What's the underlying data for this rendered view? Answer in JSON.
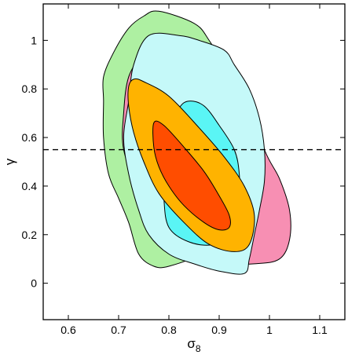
{
  "chart_data": {
    "type": "contour",
    "xlabel": "σ",
    "xlabel_sub": "8",
    "ylabel": "γ",
    "xlim": [
      0.55,
      1.15
    ],
    "ylim": [
      -0.15,
      1.15
    ],
    "xticks": [
      {
        "v": 0.6,
        "t": "0.6"
      },
      {
        "v": 0.7,
        "t": "0.7"
      },
      {
        "v": 0.8,
        "t": "0.8"
      },
      {
        "v": 0.9,
        "t": "0.9"
      },
      {
        "v": 1.0,
        "t": "1"
      },
      {
        "v": 1.1,
        "t": "1.1"
      }
    ],
    "yticks": [
      {
        "v": 0.0,
        "t": "0"
      },
      {
        "v": 0.2,
        "t": "0.2"
      },
      {
        "v": 0.4,
        "t": "0.4"
      },
      {
        "v": 0.6,
        "t": "0.6"
      },
      {
        "v": 0.8,
        "t": "0.8"
      },
      {
        "v": 1.0,
        "t": "1"
      }
    ],
    "reference_line": {
      "y": 0.55,
      "style": "dashed"
    },
    "grid": false,
    "regions": [
      {
        "id": "green-outer",
        "color": "#aef0a2",
        "points": [
          [
            0.75,
            1.1
          ],
          [
            0.78,
            1.12
          ],
          [
            0.85,
            1.07
          ],
          [
            0.88,
            1.0
          ],
          [
            0.92,
            0.85
          ],
          [
            0.95,
            0.65
          ],
          [
            0.96,
            0.5
          ],
          [
            0.94,
            0.35
          ],
          [
            0.9,
            0.22
          ],
          [
            0.86,
            0.12
          ],
          [
            0.8,
            0.07
          ],
          [
            0.77,
            0.07
          ],
          [
            0.74,
            0.12
          ],
          [
            0.72,
            0.25
          ],
          [
            0.7,
            0.35
          ],
          [
            0.68,
            0.45
          ],
          [
            0.67,
            0.6
          ],
          [
            0.67,
            0.75
          ],
          [
            0.67,
            0.85
          ],
          [
            0.69,
            0.95
          ],
          [
            0.72,
            1.05
          ]
        ]
      },
      {
        "id": "pink-outer",
        "color": "#f78fb3",
        "points": [
          [
            0.78,
            1.01
          ],
          [
            0.83,
            1.0
          ],
          [
            0.9,
            0.95
          ],
          [
            0.95,
            0.8
          ],
          [
            0.99,
            0.55
          ],
          [
            1.02,
            0.43
          ],
          [
            1.04,
            0.3
          ],
          [
            1.04,
            0.18
          ],
          [
            1.02,
            0.1
          ],
          [
            0.97,
            0.08
          ],
          [
            0.88,
            0.08
          ],
          [
            0.82,
            0.13
          ],
          [
            0.77,
            0.25
          ],
          [
            0.74,
            0.38
          ],
          [
            0.71,
            0.55
          ],
          [
            0.71,
            0.7
          ],
          [
            0.72,
            0.85
          ],
          [
            0.75,
            0.95
          ]
        ]
      },
      {
        "id": "cyan-outer",
        "color": "#c5f9f9",
        "points": [
          [
            0.76,
            1.02
          ],
          [
            0.82,
            1.02
          ],
          [
            0.86,
            1.0
          ],
          [
            0.91,
            0.96
          ],
          [
            0.93,
            0.9
          ],
          [
            0.96,
            0.8
          ],
          [
            0.98,
            0.68
          ],
          [
            0.99,
            0.55
          ],
          [
            0.99,
            0.42
          ],
          [
            0.98,
            0.3
          ],
          [
            0.97,
            0.2
          ],
          [
            0.96,
            0.1
          ],
          [
            0.95,
            0.04
          ],
          [
            0.9,
            0.05
          ],
          [
            0.85,
            0.08
          ],
          [
            0.8,
            0.12
          ],
          [
            0.76,
            0.2
          ],
          [
            0.74,
            0.3
          ],
          [
            0.72,
            0.45
          ],
          [
            0.71,
            0.6
          ],
          [
            0.72,
            0.75
          ],
          [
            0.73,
            0.9
          ]
        ]
      },
      {
        "id": "cyan-inner",
        "color": "#5af5f5",
        "points": [
          [
            0.84,
            0.75
          ],
          [
            0.87,
            0.73
          ],
          [
            0.9,
            0.65
          ],
          [
            0.93,
            0.55
          ],
          [
            0.94,
            0.45
          ],
          [
            0.94,
            0.32
          ],
          [
            0.93,
            0.22
          ],
          [
            0.89,
            0.16
          ],
          [
            0.84,
            0.17
          ],
          [
            0.8,
            0.23
          ],
          [
            0.79,
            0.35
          ],
          [
            0.79,
            0.5
          ],
          [
            0.8,
            0.62
          ],
          [
            0.82,
            0.72
          ]
        ]
      },
      {
        "id": "orange-outer",
        "color": "#ffb300",
        "points": [
          [
            0.73,
            0.84
          ],
          [
            0.75,
            0.83
          ],
          [
            0.8,
            0.77
          ],
          [
            0.86,
            0.64
          ],
          [
            0.91,
            0.52
          ],
          [
            0.95,
            0.4
          ],
          [
            0.97,
            0.28
          ],
          [
            0.96,
            0.16
          ],
          [
            0.93,
            0.13
          ],
          [
            0.88,
            0.16
          ],
          [
            0.83,
            0.25
          ],
          [
            0.78,
            0.37
          ],
          [
            0.75,
            0.5
          ],
          [
            0.73,
            0.62
          ],
          [
            0.72,
            0.73
          ],
          [
            0.72,
            0.81
          ]
        ]
      },
      {
        "id": "red-inner",
        "color": "#ff4d00",
        "points": [
          [
            0.77,
            0.66
          ],
          [
            0.79,
            0.65
          ],
          [
            0.83,
            0.56
          ],
          [
            0.87,
            0.46
          ],
          [
            0.9,
            0.36
          ],
          [
            0.92,
            0.28
          ],
          [
            0.92,
            0.23
          ],
          [
            0.9,
            0.22
          ],
          [
            0.87,
            0.25
          ],
          [
            0.83,
            0.32
          ],
          [
            0.8,
            0.4
          ],
          [
            0.78,
            0.48
          ],
          [
            0.77,
            0.56
          ]
        ]
      }
    ]
  }
}
